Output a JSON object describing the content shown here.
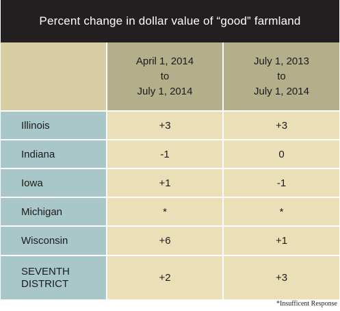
{
  "colors": {
    "title_bg": "#231f20",
    "header_bg": "#b3af8a",
    "row_label_bg": "#a9c7c8",
    "value_bg": "#eadfb7"
  },
  "chart_data": {
    "type": "table",
    "title": "Percent change in dollar value of “good” farmland",
    "columns": [
      "April 1, 2014\nto\nJuly 1, 2014",
      "July 1, 2013\nto\nJuly 1, 2014"
    ],
    "rows": [
      {
        "label": "Illinois",
        "values": [
          "+3",
          "+3"
        ]
      },
      {
        "label": "Indiana",
        "values": [
          "-1",
          "0"
        ]
      },
      {
        "label": "Iowa",
        "values": [
          "+1",
          "-1"
        ]
      },
      {
        "label": "Michigan",
        "values": [
          "*",
          "*"
        ]
      },
      {
        "label": "Wisconsin",
        "values": [
          "+6",
          "+1"
        ]
      },
      {
        "label": "SEVENTH\nDISTRICT",
        "values": [
          "+2",
          "+3"
        ]
      }
    ],
    "footnote": "*Insufficent Response"
  }
}
